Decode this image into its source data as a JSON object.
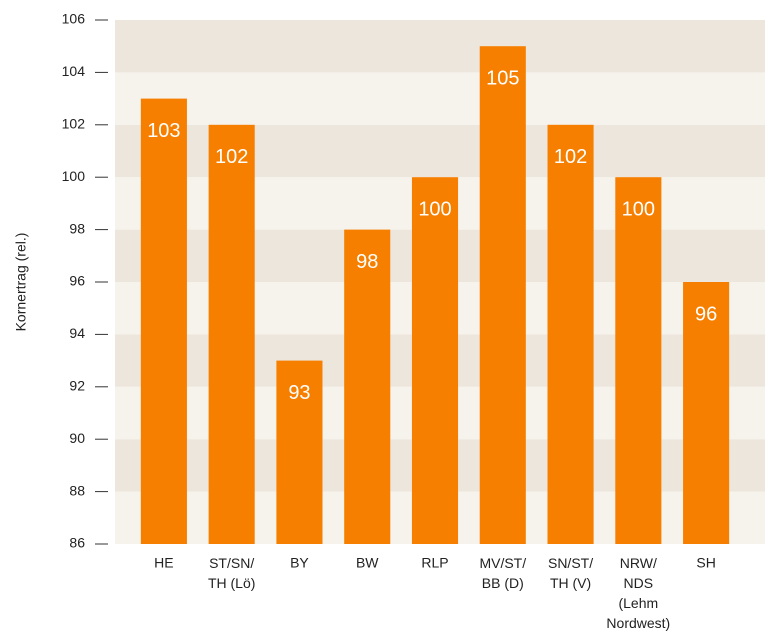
{
  "chart_data": {
    "type": "bar",
    "y_label": "Kornertrag (rel.)",
    "categories": [
      "HE",
      "ST/SN/\nTH (Lö)",
      "BY",
      "BW",
      "RLP",
      "MV/ST/\nBB (D)",
      "SN/ST/\nTH (V)",
      "NRW/\nNDS\n(Lehm\nNordwest)",
      "SH"
    ],
    "values": [
      103,
      102,
      93,
      98,
      100,
      105,
      102,
      100,
      96
    ],
    "color": "#f77f00",
    "ylim": [
      86,
      106
    ],
    "yticks": [
      86,
      88,
      90,
      92,
      94,
      96,
      98,
      100,
      102,
      104,
      106
    ],
    "grid": true
  }
}
